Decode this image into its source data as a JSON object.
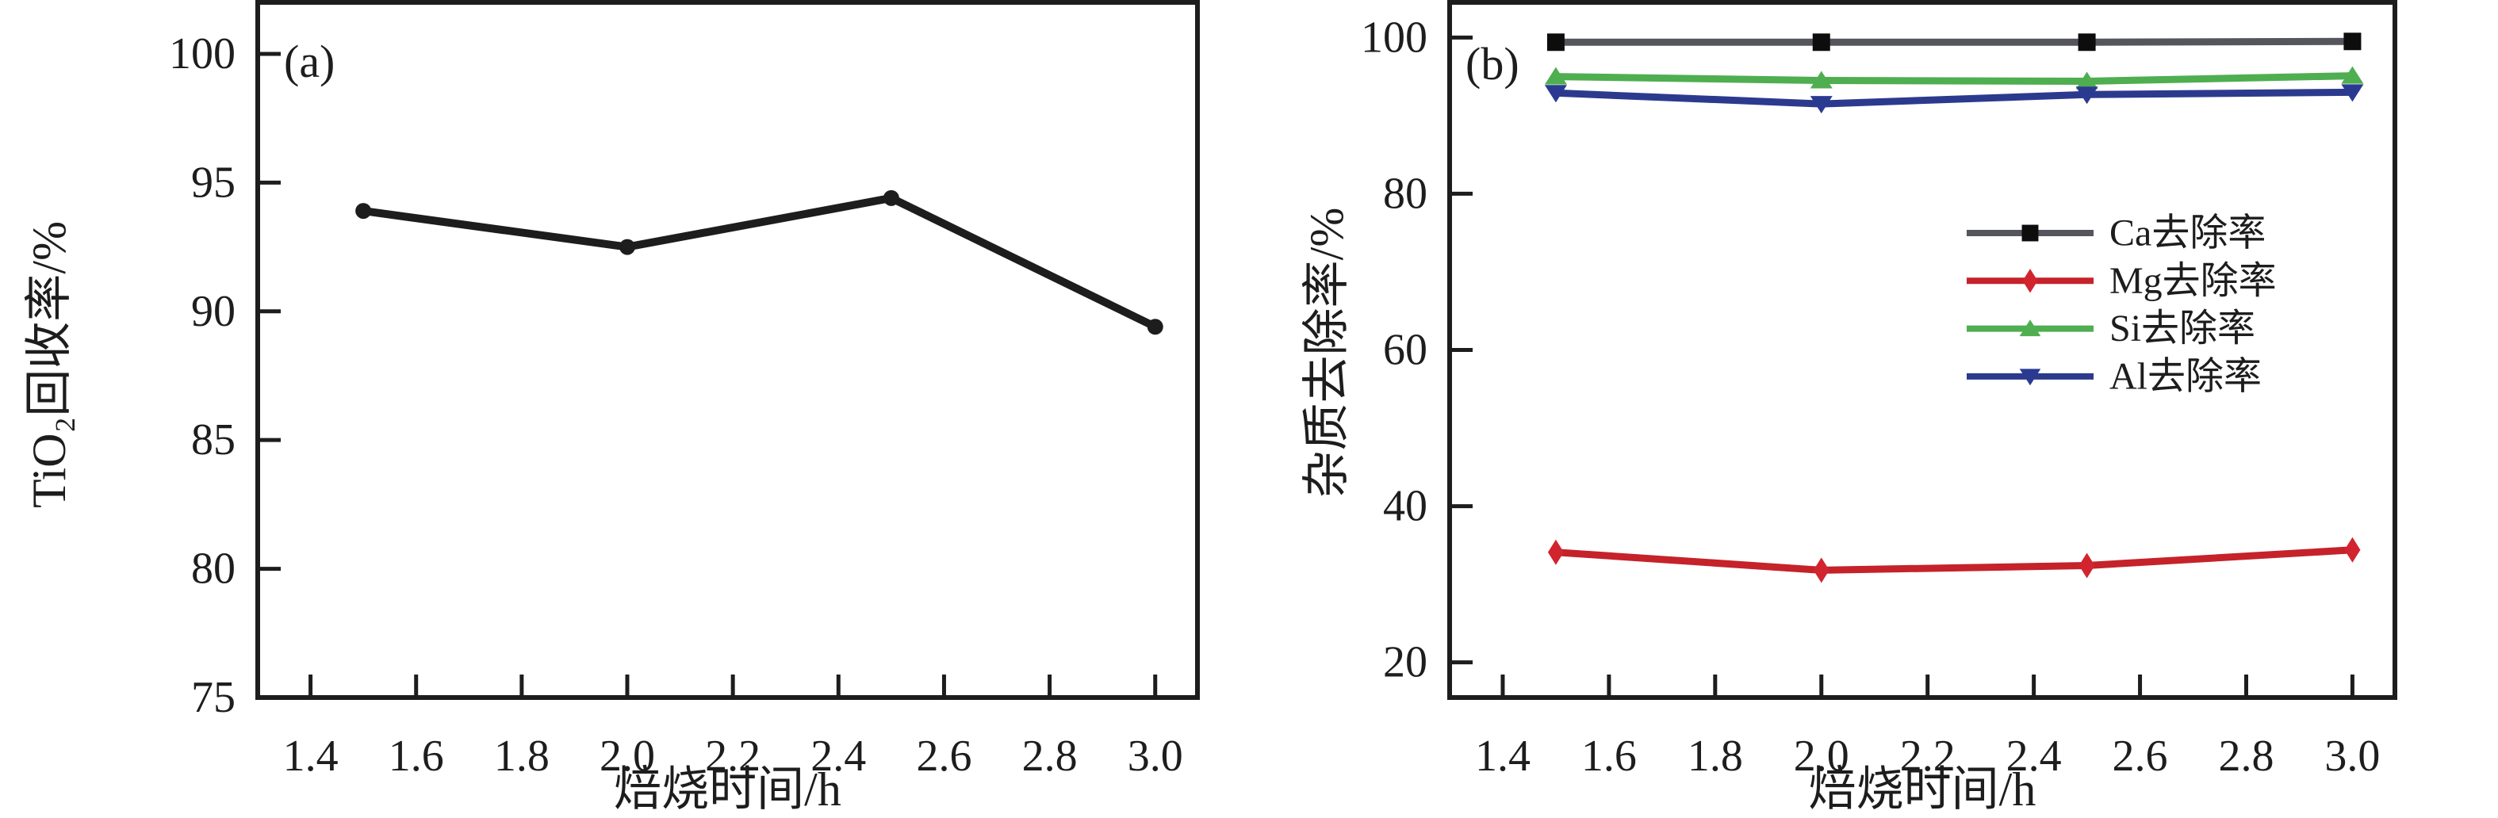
{
  "figure": {
    "background": "#ffffff",
    "text_color": "#1d1d1d",
    "axis_color": "#1d1d1d"
  },
  "chart_data": [
    {
      "id": "a",
      "type": "line",
      "panel_label": "(a)",
      "xlabel": "焙烧时间/h",
      "ylabel": "TiO₂回收率/%",
      "x": [
        1.5,
        2.0,
        2.5,
        3.0
      ],
      "xlim": [
        1.3,
        3.08
      ],
      "ylim": [
        75,
        102
      ],
      "xticks": [
        1.4,
        1.6,
        1.8,
        2.0,
        2.2,
        2.4,
        2.6,
        2.8,
        3.0
      ],
      "yticks": [
        75,
        80,
        85,
        90,
        95,
        100
      ],
      "grid": false,
      "legend": false,
      "series": [
        {
          "name": "TiO2回收率",
          "values": [
            93.9,
            92.5,
            94.4,
            89.4
          ],
          "line_color": "#1d1d1d",
          "marker": "circle",
          "marker_color": "#1d1d1d"
        }
      ]
    },
    {
      "id": "b",
      "type": "line",
      "panel_label": "(b)",
      "xlabel": "焙烧时间/h",
      "ylabel": "杂质去除率/%",
      "x": [
        1.5,
        2.0,
        2.5,
        3.0
      ],
      "xlim": [
        1.3,
        3.08
      ],
      "ylim": [
        15.5,
        104.5
      ],
      "xticks": [
        1.4,
        1.6,
        1.8,
        2.0,
        2.2,
        2.4,
        2.6,
        2.8,
        3.0
      ],
      "yticks": [
        20,
        40,
        60,
        80,
        100
      ],
      "grid": false,
      "legend": true,
      "legend_position": "center-right",
      "series": [
        {
          "name": "Ca去除率",
          "values": [
            99.4,
            99.4,
            99.4,
            99.5
          ],
          "line_color": "#55555d",
          "marker": "square",
          "marker_color": "#0d0d0d"
        },
        {
          "name": "Mg去除率",
          "values": [
            34.1,
            31.8,
            32.4,
            34.4
          ],
          "line_color": "#c5222a",
          "marker": "diamond",
          "marker_color": "#d2242e"
        },
        {
          "name": "Si去除率",
          "values": [
            95.0,
            94.5,
            94.4,
            95.1
          ],
          "line_color": "#4fae50",
          "marker": "triangle-up",
          "marker_color": "#4fae50"
        },
        {
          "name": "Al去除率",
          "values": [
            92.9,
            91.5,
            92.7,
            93.0
          ],
          "line_color": "#2c3a8e",
          "marker": "triangle-down",
          "marker_color": "#2b3a91"
        }
      ]
    }
  ]
}
